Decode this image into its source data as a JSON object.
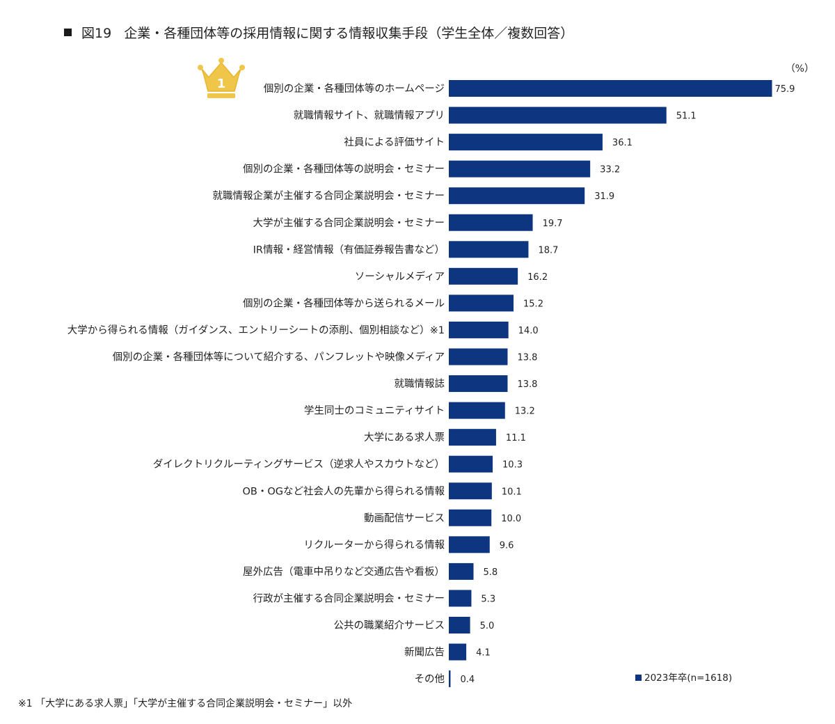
{
  "header": {
    "figure_label": "図19",
    "title": "企業・各種団体等の採用情報に関する情報収集手段（学生全体／複数回答）"
  },
  "colors": {
    "bar": "#0e3580",
    "crown": "#f0c64a",
    "crown_stroke": "#e6b530",
    "text": "#222222"
  },
  "icons": {
    "title_marker": "black-square",
    "rank_badge": "crown-icon"
  },
  "chart_data": {
    "type": "bar",
    "orientation": "horizontal",
    "unit": "（%）",
    "xlim": [
      0,
      80
    ],
    "grid": false,
    "legend_position": "bottom-right",
    "top_rank_label": "1",
    "categories": [
      "個別の企業・各種団体等のホームページ",
      "就職情報サイト、就職情報アプリ",
      "社員による評価サイト",
      "個別の企業・各種団体等の説明会・セミナー",
      "就職情報企業が主催する合同企業説明会・セミナー",
      "大学が主催する合同企業説明会・セミナー",
      "IR情報・経営情報（有価証券報告書など）",
      "ソーシャルメディア",
      "個別の企業・各種団体等から送られるメール",
      "大学から得られる情報（ガイダンス、エントリーシートの添削、個別相談など）※1",
      "個別の企業・各種団体等について紹介する、パンフレットや映像メディア",
      "就職情報誌",
      "学生同士のコミュニティサイト",
      "大学にある求人票",
      "ダイレクトリクルーティングサービス（逆求人やスカウトなど）",
      "OB・OGなど社会人の先輩から得られる情報",
      "動画配信サービス",
      "リクルーターから得られる情報",
      "屋外広告（電車中吊りなど交通広告や看板）",
      "行政が主催する合同企業説明会・セミナー",
      "公共の職業紹介サービス",
      "新聞広告",
      "その他"
    ],
    "series": [
      {
        "name": "2023年卒(n=1618)",
        "values": [
          75.9,
          51.1,
          36.1,
          33.2,
          31.9,
          19.7,
          18.7,
          16.2,
          15.2,
          14.0,
          13.8,
          13.8,
          13.2,
          11.1,
          10.3,
          10.1,
          10.0,
          9.6,
          5.8,
          5.3,
          5.0,
          4.1,
          0.4
        ],
        "labels": [
          "75.9",
          "51.1",
          "36.1",
          "33.2",
          "31.9",
          "19.7",
          "18.7",
          "16.2",
          "15.2",
          "14.0",
          "13.8",
          "13.8",
          "13.2",
          "11.1",
          "10.3",
          "10.1",
          "10.0",
          "9.6",
          "5.8",
          "5.3",
          "5.0",
          "4.1",
          "0.4"
        ]
      }
    ]
  },
  "footnote": "※1 「大学にある求人票」「大学が主催する合同企業説明会・セミナー」以外"
}
